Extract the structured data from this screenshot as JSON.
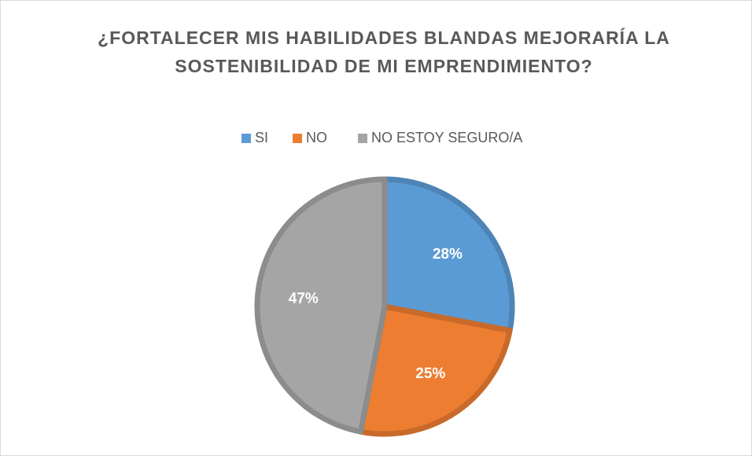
{
  "chart_data": {
    "type": "pie",
    "title": "¿FORTALECER MIS HABILIDADES BLANDAS MEJORARÍA LA SOSTENIBILIDAD DE MI EMPRENDIMIENTO?",
    "categories": [
      "SI",
      "NO",
      "NO ESTOY SEGURO/A"
    ],
    "values": [
      28,
      25,
      47
    ],
    "value_labels": [
      "28%",
      "25%",
      "47%"
    ],
    "colors": [
      "#5b9bd5",
      "#ed7d31",
      "#a5a5a5"
    ],
    "legend": "top"
  }
}
